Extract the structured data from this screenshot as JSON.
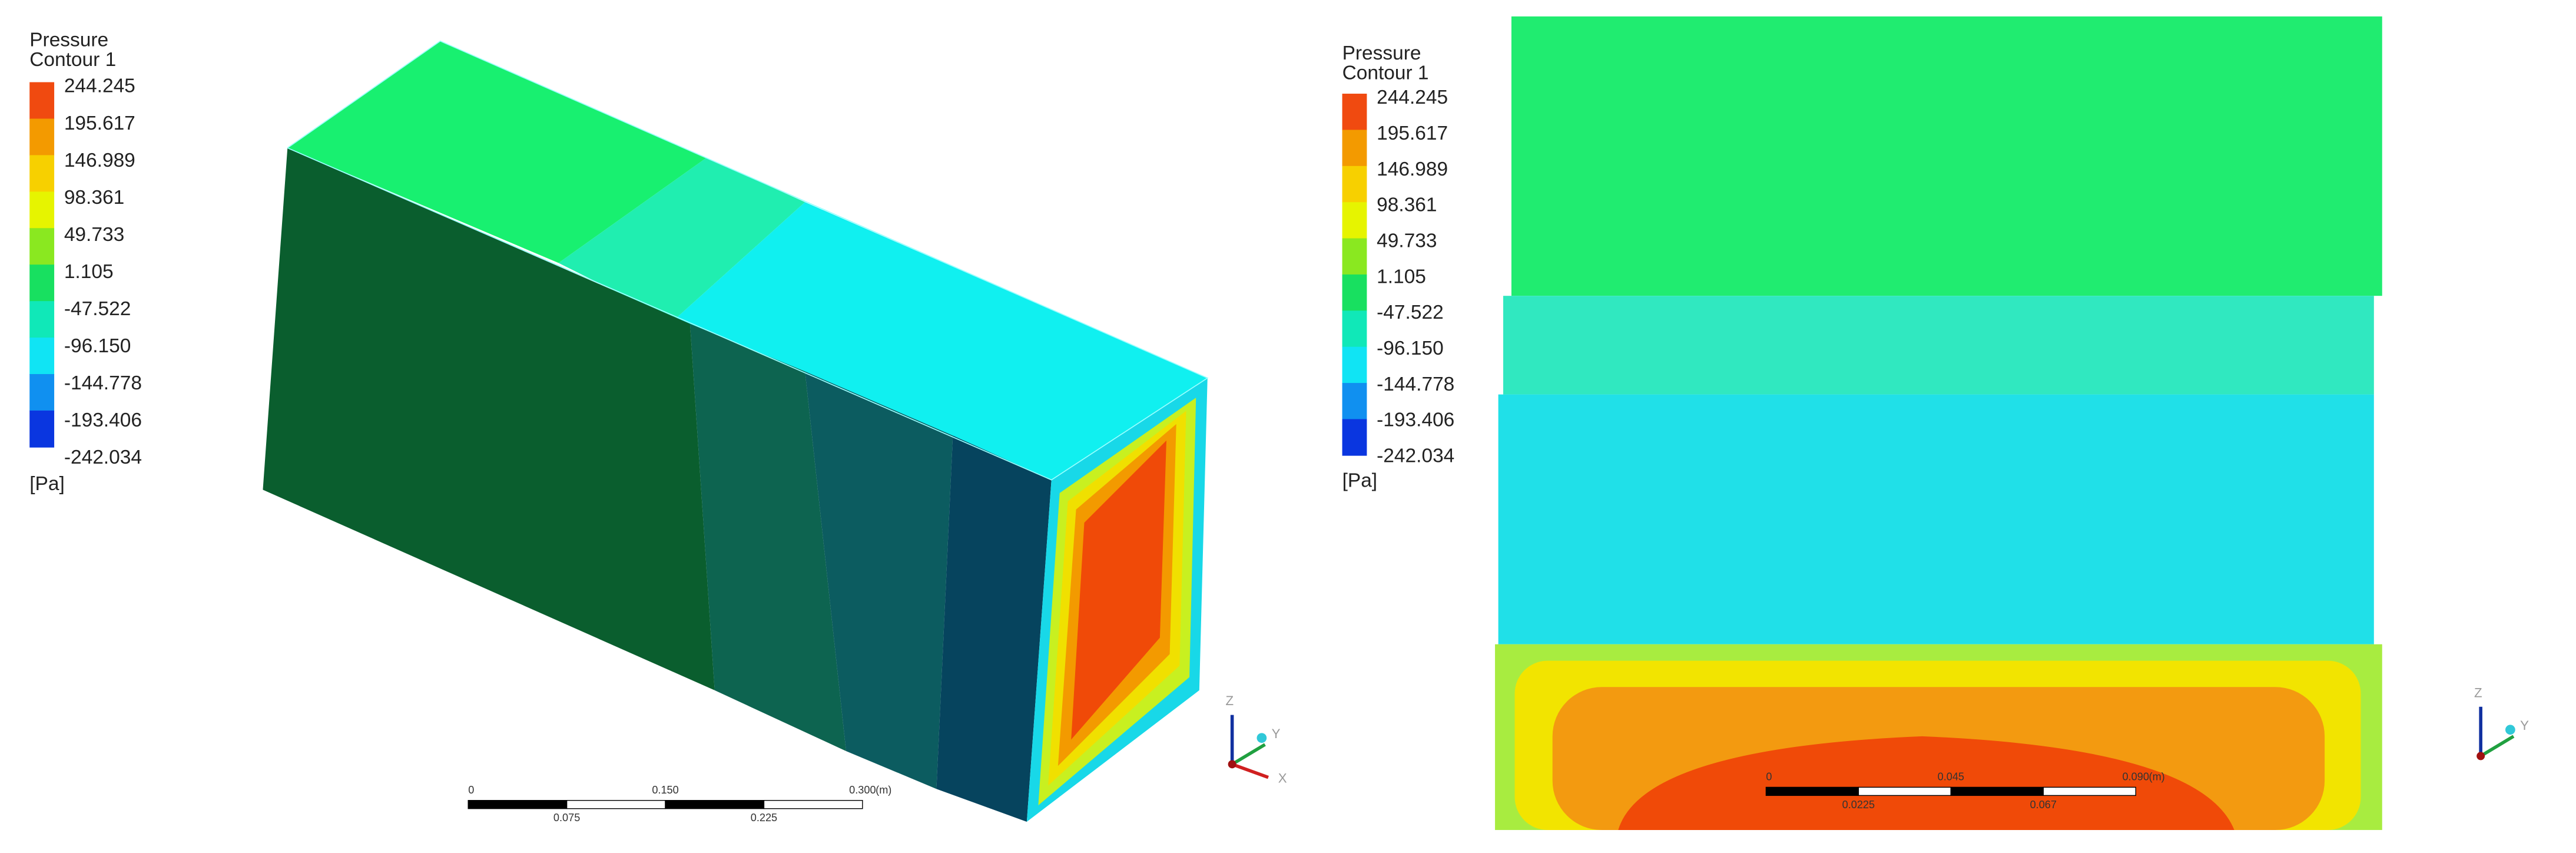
{
  "panels": [
    {
      "legend": {
        "title": "Pressure",
        "subtitle": "Contour 1",
        "labels": [
          "244.245",
          "195.617",
          "146.989",
          "98.361",
          "49.733",
          "1.105",
          "-47.522",
          "-96.150",
          "-144.778",
          "-193.406",
          "-242.034"
        ],
        "unit": "[Pa]"
      },
      "scale_bar": {
        "top_labels": [
          "0",
          "0.150",
          "0.300"
        ],
        "unit": "(m)",
        "bottom_labels": [
          "0.075",
          "0.225"
        ]
      },
      "axes": [
        "Z",
        "Y",
        "X"
      ]
    },
    {
      "legend": {
        "title": "Pressure",
        "subtitle": "Contour 1",
        "labels": [
          "244.245",
          "195.617",
          "146.989",
          "98.361",
          "49.733",
          "1.105",
          "-47.522",
          "-96.150",
          "-144.778",
          "-193.406",
          "-242.034"
        ],
        "unit": "[Pa]"
      },
      "scale_bar": {
        "top_labels": [
          "0",
          "0.045",
          "0.090"
        ],
        "unit": "(m)",
        "bottom_labels": [
          "0.0225",
          "0.067"
        ]
      },
      "axes": [
        "Z",
        "Y"
      ]
    }
  ]
}
